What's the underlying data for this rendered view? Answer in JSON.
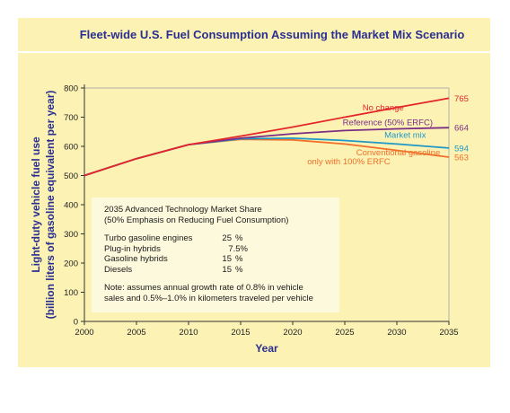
{
  "title": "Fleet-wide U.S. Fuel Consumption Assuming the Market Mix Scenario",
  "chart_data": {
    "type": "line",
    "title": "Fleet-wide U.S. Fuel Consumption Assuming the Market Mix Scenario",
    "xlabel": "Year",
    "ylabel_line1": "Light-duty vehicle fuel use",
    "ylabel_line2": "(billion liters of gasoline equivalent per year)",
    "xlim": [
      2000,
      2035
    ],
    "ylim": [
      0,
      800
    ],
    "xticks": [
      2000,
      2005,
      2010,
      2015,
      2020,
      2025,
      2030,
      2035
    ],
    "yticks": [
      0,
      100,
      200,
      300,
      400,
      500,
      600,
      700,
      800
    ],
    "grid": false,
    "series": [
      {
        "name": "No change",
        "color": "#e4262b",
        "x": [
          2000,
          2005,
          2010,
          2015,
          2020,
          2025,
          2030,
          2035
        ],
        "y": [
          500,
          558,
          606,
          635,
          666,
          700,
          733,
          765
        ],
        "end_label": "765"
      },
      {
        "name": "Reference (50% ERFC)",
        "color": "#7a2e86",
        "x": [
          2000,
          2005,
          2010,
          2015,
          2020,
          2025,
          2030,
          2035
        ],
        "y": [
          500,
          558,
          606,
          628,
          643,
          654,
          660,
          664
        ],
        "end_label": "664"
      },
      {
        "name": "Market mix",
        "color": "#1f98c8",
        "x": [
          2000,
          2005,
          2010,
          2015,
          2020,
          2025,
          2030,
          2035
        ],
        "y": [
          500,
          558,
          606,
          626,
          628,
          620,
          608,
          594
        ],
        "end_label": "594"
      },
      {
        "name": "Conventional gasoline only with 100% ERFC",
        "color": "#f0702a",
        "x": [
          2000,
          2005,
          2010,
          2015,
          2020,
          2025,
          2030,
          2035
        ],
        "y": [
          500,
          558,
          606,
          624,
          622,
          608,
          586,
          563
        ],
        "end_label": "563"
      }
    ],
    "annotations": {
      "no_change": "No change",
      "reference": "Reference (50% ERFC)",
      "market_mix": "Market mix",
      "conventional_line1": "Conventional gasoline",
      "conventional_line2": "only with 100% ERFC"
    },
    "market_share_note": {
      "heading_line1": "2035 Advanced Technology Market Share",
      "heading_line2": "(50% Emphasis on Reducing Fuel Consumption)",
      "rows": [
        {
          "name": "Turbo gasoline engines",
          "value": "25",
          "unit": "%"
        },
        {
          "name": "Plug-in hybrids",
          "value": "7.5%",
          "unit": ""
        },
        {
          "name": "Gasoline hybrids",
          "value": "15",
          "unit": "%"
        },
        {
          "name": "Diesels",
          "value": "15",
          "unit": "%"
        }
      ],
      "note_line1": "Note: assumes annual growth rate of 0.8% in vehicle",
      "note_line2": "sales and 0.5%–1.0% in kilometers traveled per vehicle"
    },
    "colors": {
      "background": "#fbf2b4",
      "title": "#2a2f8f",
      "axis_label": "#2a2f8f",
      "axis": "#333333",
      "gridline_top": "#b0b0b0"
    }
  }
}
